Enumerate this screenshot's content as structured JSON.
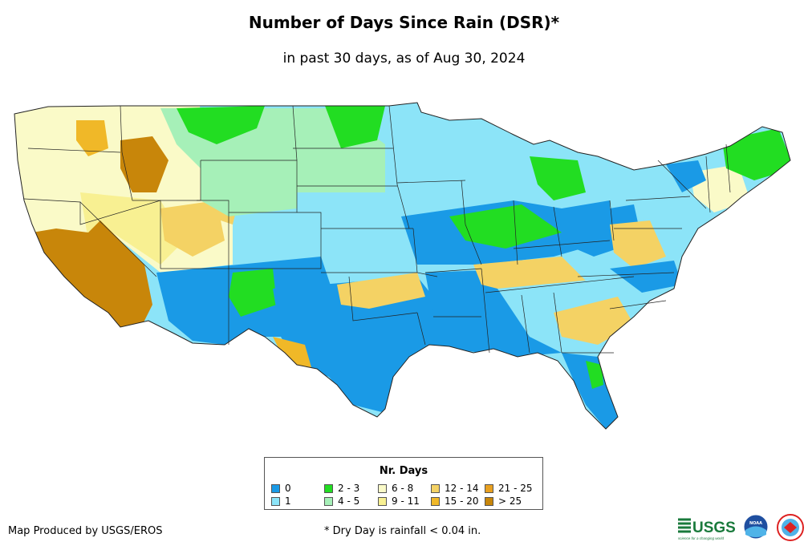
{
  "title": "Number of Days Since Rain (DSR)*",
  "subtitle": "in past 30 days, as of Aug 30, 2024",
  "legend": {
    "title": "Nr. Days",
    "items": [
      {
        "label": "0",
        "color": "#1a9ae6"
      },
      {
        "label": "1",
        "color": "#8ce4f8"
      },
      {
        "label": "2 - 3",
        "color": "#22dd22"
      },
      {
        "label": "4 - 5",
        "color": "#a6f0b8"
      },
      {
        "label": "6 - 8",
        "color": "#fafac8"
      },
      {
        "label": "9 - 11",
        "color": "#f8f092"
      },
      {
        "label": "12 - 14",
        "color": "#f4d264"
      },
      {
        "label": "15 - 20",
        "color": "#f0b828"
      },
      {
        "label": "21 - 25",
        "color": "#e8a020"
      },
      {
        "label": "> 25",
        "color": "#c8860a"
      }
    ]
  },
  "credit": "Map Produced by USGS/EROS",
  "footnote": "* Dry Day is rainfall < 0.04 in.",
  "logos": {
    "usgs_text": "USGS",
    "usgs_tagline": "science for a changing world",
    "noaa_text": "NOAA"
  }
}
